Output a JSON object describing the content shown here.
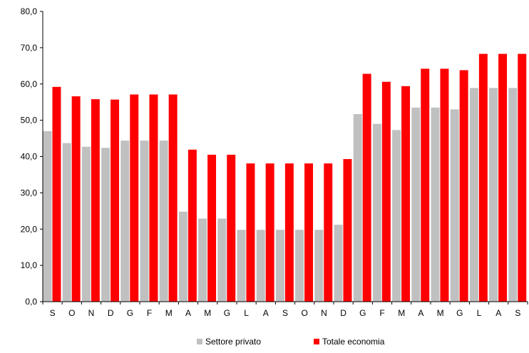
{
  "chart_data": {
    "type": "bar",
    "categories": [
      "S",
      "O",
      "N",
      "D",
      "G",
      "F",
      "M",
      "A",
      "M",
      "G",
      "L",
      "A",
      "S",
      "O",
      "N",
      "D",
      "G",
      "F",
      "M",
      "A",
      "M",
      "G",
      "L",
      "A",
      "S"
    ],
    "series": [
      {
        "name": "Settore privato",
        "color": "#c0c0c0",
        "values": [
          47.0,
          43.7,
          42.7,
          42.4,
          44.4,
          44.4,
          44.4,
          24.8,
          22.9,
          22.9,
          19.8,
          19.8,
          19.8,
          19.8,
          19.8,
          21.2,
          51.7,
          49.0,
          47.3,
          53.5,
          53.5,
          53.0,
          58.9,
          58.9,
          58.9
        ]
      },
      {
        "name": "Totale economia",
        "color": "#ff0000",
        "values": [
          59.2,
          56.6,
          55.8,
          55.7,
          57.1,
          57.1,
          57.1,
          41.9,
          40.5,
          40.5,
          38.1,
          38.1,
          38.1,
          38.1,
          38.1,
          39.3,
          62.8,
          60.6,
          59.4,
          64.2,
          64.2,
          63.8,
          68.3,
          68.3,
          68.3
        ]
      }
    ],
    "yticks": [
      "0,0",
      "10,0",
      "20,0",
      "30,0",
      "40,0",
      "50,0",
      "60,0",
      "70,0",
      "80,0"
    ],
    "ylim": [
      0,
      80
    ],
    "grid": false,
    "legend_position": "bottom"
  }
}
